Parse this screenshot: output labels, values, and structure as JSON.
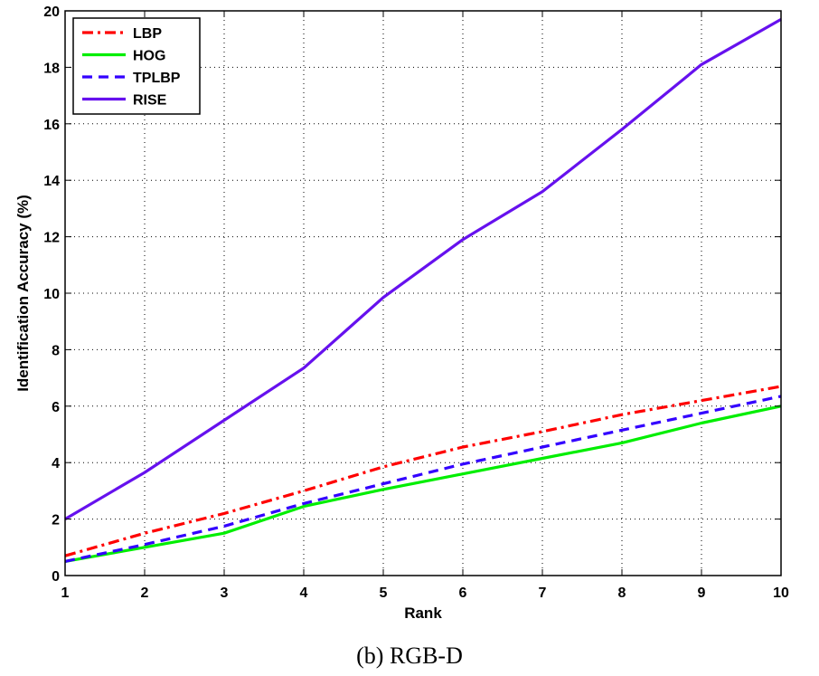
{
  "chart_data": {
    "type": "line",
    "title": "",
    "xlabel": "Rank",
    "ylabel": "Identification Accuracy (%)",
    "x": [
      1,
      2,
      3,
      4,
      5,
      6,
      7,
      8,
      9,
      10
    ],
    "xlim": [
      1,
      10
    ],
    "ylim": [
      0,
      20
    ],
    "xticks": [
      1,
      2,
      3,
      4,
      5,
      6,
      7,
      8,
      9,
      10
    ],
    "yticks": [
      0,
      2,
      4,
      6,
      8,
      10,
      12,
      14,
      16,
      18,
      20
    ],
    "grid": true,
    "legend_position": "top-left",
    "series": [
      {
        "name": "LBP",
        "color": "#ff0000",
        "style": "dashdot",
        "values": [
          0.7,
          1.5,
          2.2,
          3.0,
          3.85,
          4.55,
          5.1,
          5.7,
          6.2,
          6.7
        ]
      },
      {
        "name": "HOG",
        "color": "#00ee00",
        "style": "solid",
        "values": [
          0.5,
          1.0,
          1.5,
          2.45,
          3.05,
          3.6,
          4.15,
          4.7,
          5.4,
          6.0
        ]
      },
      {
        "name": "TPLBP",
        "color": "#3300ff",
        "style": "dashed",
        "values": [
          0.5,
          1.1,
          1.75,
          2.55,
          3.25,
          3.95,
          4.55,
          5.15,
          5.75,
          6.35
        ]
      },
      {
        "name": "RISE",
        "color": "#6611ee",
        "style": "solid",
        "values": [
          2.0,
          3.65,
          5.5,
          7.35,
          9.85,
          11.9,
          13.6,
          15.8,
          18.1,
          19.7
        ]
      }
    ]
  },
  "caption": "(b) RGB-D"
}
